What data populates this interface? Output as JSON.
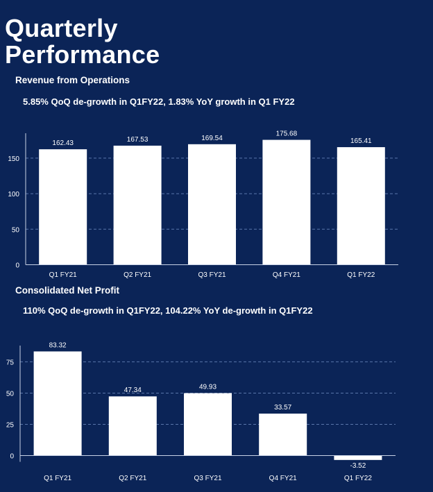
{
  "page": {
    "title": "Quarterly\nPerformance"
  },
  "sections": [
    {
      "heading": "Revenue from Operations",
      "subtitle": "5.85% QoQ de-growth in Q1FY22, 1.83% YoY growth in Q1 FY22"
    },
    {
      "heading": "Consolidated Net Profit",
      "subtitle": "110% QoQ de-growth in Q1FY22, 104.22% YoY de-growth in Q1FY22"
    }
  ],
  "colors": {
    "background": "#0b2457",
    "bar": "#ffffff",
    "text": "#ffffff"
  },
  "chart_data": [
    {
      "type": "bar",
      "title": "Revenue from Operations",
      "categories": [
        "Q1 FY21",
        "Q2 FY21",
        "Q3 FY21",
        "Q4 FY21",
        "Q1 FY22"
      ],
      "values": [
        162.43,
        167.53,
        169.54,
        175.68,
        165.41
      ],
      "data_labels": [
        "162.43",
        "167.53",
        "169.54",
        "175.68",
        "165.41"
      ],
      "ylim": [
        0,
        185
      ],
      "yticks": [
        0,
        50,
        100,
        150
      ],
      "grid": true,
      "xlabel": "",
      "ylabel": ""
    },
    {
      "type": "bar",
      "title": "Consolidated Net Profit",
      "categories": [
        "Q1 FY21",
        "Q2 FY21",
        "Q3 FY21",
        "Q4 FY21",
        "Q1 FY22"
      ],
      "values": [
        83.32,
        47.34,
        49.93,
        33.57,
        -3.52
      ],
      "data_labels": [
        "83.32",
        "47.34",
        "49.93",
        "33.57",
        "-3.52"
      ],
      "ylim": [
        -5,
        88
      ],
      "yticks": [
        0,
        25,
        50,
        75
      ],
      "grid": true,
      "xlabel": "",
      "ylabel": ""
    }
  ]
}
